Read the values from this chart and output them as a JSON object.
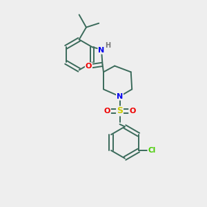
{
  "background_color": "#eeeeee",
  "bond_color": "#3a6a5a",
  "bond_width": 1.4,
  "atom_colors": {
    "N": "#0000ee",
    "O": "#ee0000",
    "S": "#cccc00",
    "Cl": "#44cc00",
    "H": "#777777",
    "C": "#3a6a5a"
  },
  "figsize": [
    3.0,
    3.0
  ],
  "dpi": 100,
  "xlim": [
    0,
    10
  ],
  "ylim": [
    0,
    10
  ]
}
